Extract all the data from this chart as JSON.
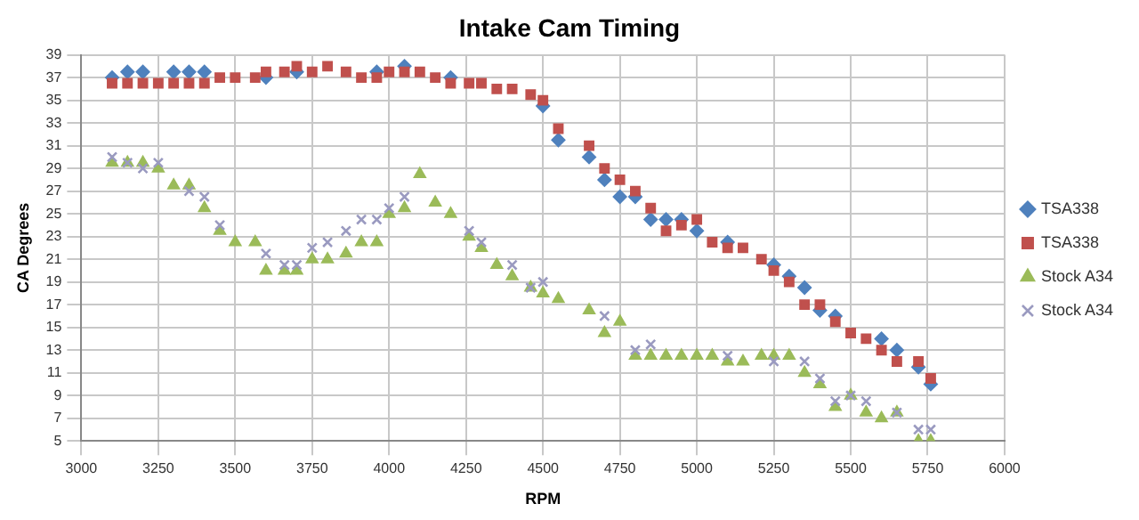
{
  "chart_data": {
    "type": "scatter",
    "title": "Intake Cam Timing",
    "xlabel": "RPM",
    "ylabel": "CA Degrees",
    "xlim": [
      3000,
      6000
    ],
    "xticks": [
      3000,
      3250,
      3500,
      3750,
      4000,
      4250,
      4500,
      4750,
      5000,
      5250,
      5500,
      5750,
      6000
    ],
    "ylim": [
      5,
      39
    ],
    "yticks": [
      5,
      7,
      9,
      11,
      13,
      15,
      17,
      19,
      21,
      23,
      25,
      27,
      29,
      31,
      33,
      35,
      37,
      39
    ],
    "grid": true,
    "legend": "right",
    "series": [
      {
        "name": "TSA338",
        "color": "#4f81bd",
        "marker": "diamond",
        "x": [
          3100,
          3150,
          3200,
          3300,
          3350,
          3400,
          3600,
          3700,
          3960,
          4050,
          4200,
          4500,
          4550,
          4650,
          4700,
          4750,
          4800,
          4850,
          4900,
          4950,
          5000,
          5100,
          5250,
          5300,
          5350,
          5400,
          5450,
          5600,
          5650,
          5720,
          5760
        ],
        "values": [
          37,
          37.5,
          37.5,
          37.5,
          37.5,
          37.5,
          37,
          37.5,
          37.5,
          38,
          37,
          34.5,
          31.5,
          30,
          28,
          26.5,
          26.5,
          24.5,
          24.5,
          24.5,
          23.5,
          22.5,
          20.5,
          19.5,
          18.5,
          16.5,
          16,
          14,
          13,
          11.5,
          10
        ]
      },
      {
        "name": "TSA338",
        "color": "#c0504d",
        "marker": "square",
        "x": [
          3100,
          3150,
          3200,
          3250,
          3300,
          3350,
          3400,
          3450,
          3500,
          3565,
          3600,
          3660,
          3700,
          3750,
          3800,
          3860,
          3910,
          3960,
          4000,
          4050,
          4100,
          4150,
          4200,
          4260,
          4300,
          4350,
          4400,
          4460,
          4500,
          4550,
          4650,
          4700,
          4750,
          4800,
          4850,
          4900,
          4950,
          5000,
          5050,
          5100,
          5150,
          5210,
          5250,
          5300,
          5350,
          5400,
          5450,
          5500,
          5550,
          5600,
          5650,
          5720,
          5760
        ],
        "values": [
          36.5,
          36.5,
          36.5,
          36.5,
          36.5,
          36.5,
          36.5,
          37,
          37,
          37,
          37.5,
          37.5,
          38,
          37.5,
          38,
          37.5,
          37,
          37,
          37.5,
          37.5,
          37.5,
          37,
          36.5,
          36.5,
          36.5,
          36,
          36,
          35.5,
          35,
          32.5,
          31,
          29,
          28,
          27,
          25.5,
          23.5,
          24,
          24.5,
          22.5,
          22,
          22,
          21,
          20,
          19,
          17,
          17,
          15.5,
          14.5,
          14,
          13,
          12,
          12,
          10.5
        ]
      },
      {
        "name": "Stock A34",
        "color": "#9bbb59",
        "marker": "triangle",
        "x": [
          3100,
          3150,
          3200,
          3250,
          3300,
          3350,
          3400,
          3450,
          3500,
          3565,
          3600,
          3660,
          3700,
          3750,
          3800,
          3860,
          3910,
          3960,
          4000,
          4050,
          4100,
          4150,
          4200,
          4260,
          4300,
          4350,
          4400,
          4460,
          4500,
          4550,
          4650,
          4700,
          4750,
          4800,
          4850,
          4900,
          4950,
          5000,
          5050,
          5100,
          5150,
          5210,
          5250,
          5300,
          5350,
          5400,
          5450,
          5500,
          5550,
          5600,
          5650,
          5720,
          5760
        ],
        "values": [
          29.5,
          29.5,
          29.5,
          29,
          27.5,
          27.5,
          25.5,
          23.5,
          22.5,
          22.5,
          20,
          20,
          20,
          21,
          21,
          21.5,
          22.5,
          22.5,
          25,
          25.5,
          28.5,
          26,
          25,
          23,
          22,
          20.5,
          19.5,
          18.5,
          18,
          17.5,
          16.5,
          14.5,
          15.5,
          12.5,
          12.5,
          12.5,
          12.5,
          12.5,
          12.5,
          12,
          12,
          12.5,
          12.5,
          12.5,
          11,
          10,
          8,
          9,
          7.5,
          7,
          7.5,
          5,
          5
        ]
      },
      {
        "name": "Stock A34",
        "color": "#9a9ac0",
        "marker": "cross",
        "x": [
          3100,
          3150,
          3200,
          3250,
          3350,
          3400,
          3450,
          3600,
          3660,
          3700,
          3750,
          3800,
          3860,
          3910,
          3960,
          4000,
          4050,
          4260,
          4300,
          4400,
          4460,
          4500,
          4700,
          4800,
          4850,
          5100,
          5250,
          5350,
          5400,
          5450,
          5500,
          5550,
          5650,
          5720,
          5760
        ],
        "values": [
          30,
          29.5,
          29,
          29.5,
          27,
          26.5,
          24,
          21.5,
          20.5,
          20.5,
          22,
          22.5,
          23.5,
          24.5,
          24.5,
          25.5,
          26.5,
          23.5,
          22.5,
          20.5,
          18.5,
          19,
          16,
          13,
          13.5,
          12.5,
          12,
          12,
          10.5,
          8.5,
          9,
          8.5,
          7.5,
          6,
          6
        ]
      }
    ]
  }
}
